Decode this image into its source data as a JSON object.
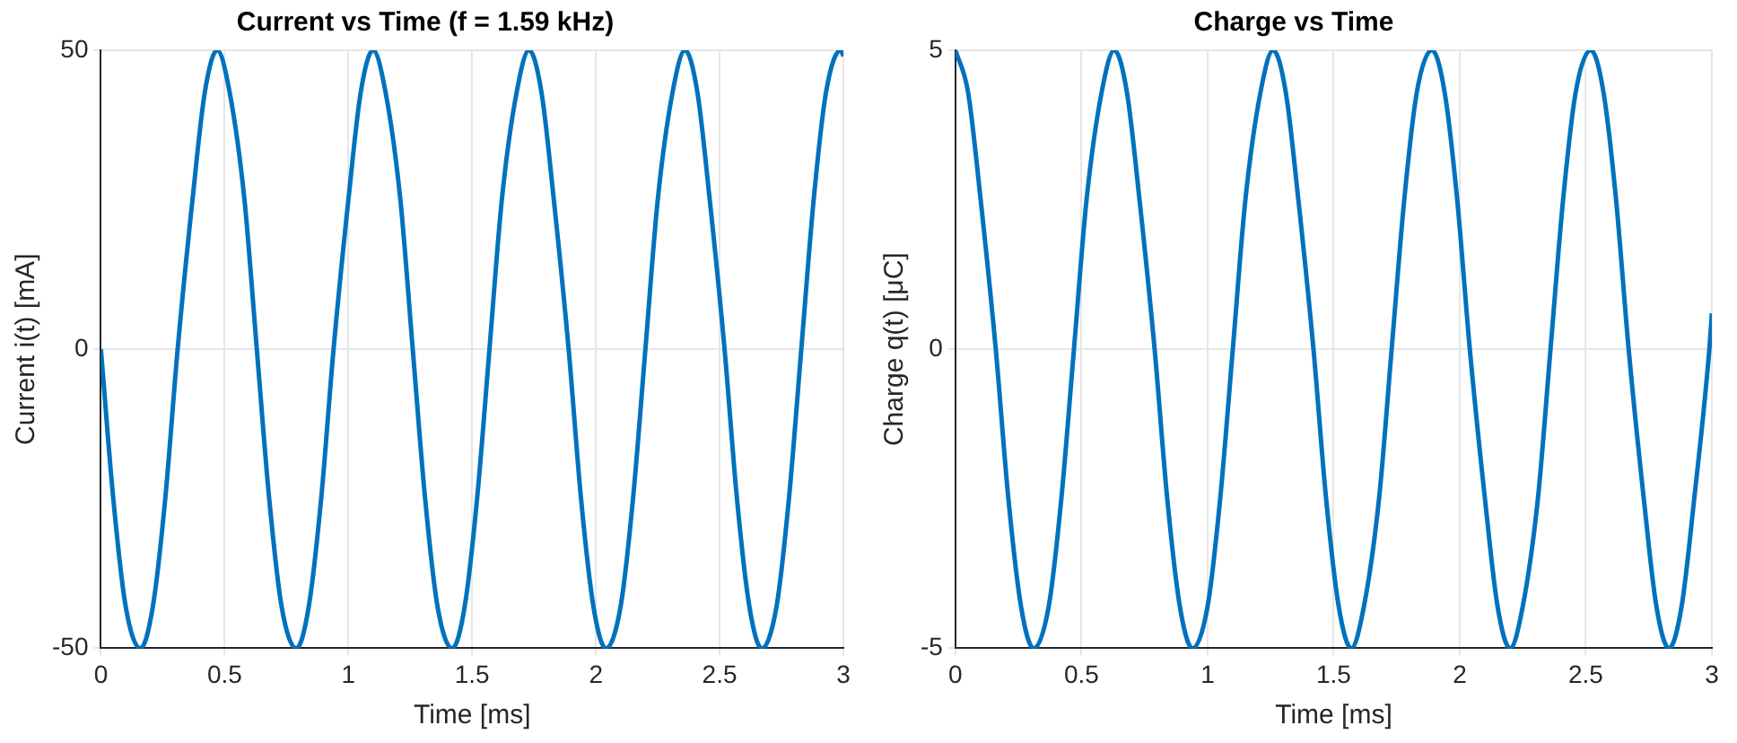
{
  "chart_data": [
    {
      "type": "line",
      "title": "Current vs Time (f = 1.59 kHz)",
      "xlabel": "Time [ms]",
      "ylabel": "Current i(t) [mA]",
      "x": [
        0,
        0.05,
        0.1,
        0.16,
        0.21,
        0.26,
        0.31,
        0.37,
        0.42,
        0.47,
        0.52,
        0.58,
        0.63,
        0.68,
        0.73,
        0.79,
        0.84,
        0.89,
        0.94,
        1.0,
        1.05,
        1.1,
        1.15,
        1.21,
        1.26,
        1.31,
        1.36,
        1.42,
        1.47,
        1.52,
        1.57,
        1.62,
        1.68,
        1.73,
        1.78,
        1.83,
        1.89,
        1.94,
        1.99,
        2.04,
        2.1,
        2.15,
        2.2,
        2.25,
        2.31,
        2.36,
        2.41,
        2.46,
        2.52,
        2.57,
        2.62,
        2.67,
        2.73,
        2.78,
        2.83,
        2.88,
        2.93,
        2.99,
        3
      ],
      "values": [
        0,
        -25,
        -43,
        -50,
        -43,
        -25,
        0,
        25,
        43,
        50,
        43,
        25,
        0,
        -25,
        -43,
        -50,
        -43,
        -25,
        0,
        25,
        43,
        50,
        43,
        25,
        0,
        -25,
        -43,
        -50,
        -43,
        -25,
        0,
        25,
        43,
        50,
        43,
        25,
        0,
        -25,
        -43,
        -50,
        -43,
        -25,
        0,
        25,
        43,
        50,
        43,
        25,
        0,
        -25,
        -43,
        -50,
        -43,
        -25,
        0,
        25,
        43,
        50,
        49
      ],
      "color": "#0072bd",
      "xlim": [
        0,
        3
      ],
      "xticks": [
        0,
        0.5,
        1,
        1.5,
        2,
        2.5,
        3
      ],
      "ylim": [
        -50,
        50
      ],
      "yticks": [
        -50,
        0,
        50
      ],
      "grid": true
    },
    {
      "type": "line",
      "title": "Charge vs Time",
      "xlabel": "Time [ms]",
      "ylabel": "Charge q(t) [μC]",
      "x": [
        0,
        0.05,
        0.1,
        0.16,
        0.21,
        0.26,
        0.31,
        0.37,
        0.42,
        0.47,
        0.52,
        0.58,
        0.63,
        0.68,
        0.73,
        0.79,
        0.84,
        0.89,
        0.94,
        1.0,
        1.05,
        1.1,
        1.15,
        1.21,
        1.26,
        1.31,
        1.36,
        1.42,
        1.47,
        1.52,
        1.57,
        1.62,
        1.68,
        1.73,
        1.78,
        1.83,
        1.89,
        1.94,
        1.99,
        2.04,
        2.1,
        2.15,
        2.2,
        2.25,
        2.31,
        2.36,
        2.41,
        2.46,
        2.52,
        2.57,
        2.62,
        2.67,
        2.73,
        2.78,
        2.83,
        2.88,
        2.93,
        2.99,
        3
      ],
      "values": [
        5,
        4.3,
        2.5,
        0,
        -2.5,
        -4.3,
        -5,
        -4.3,
        -2.5,
        0,
        2.5,
        4.3,
        5,
        4.3,
        2.5,
        0,
        -2.5,
        -4.3,
        -5,
        -4.3,
        -2.5,
        0,
        2.5,
        4.3,
        5,
        4.3,
        2.5,
        0,
        -2.5,
        -4.3,
        -5,
        -4.3,
        -2.5,
        0,
        2.5,
        4.3,
        5,
        4.3,
        2.5,
        0,
        -2.5,
        -4.3,
        -5,
        -4.3,
        -2.5,
        0,
        2.5,
        4.3,
        5,
        4.3,
        2.5,
        0,
        -2.5,
        -4.3,
        -5,
        -4.3,
        -2.5,
        0,
        0.6
      ],
      "color": "#0072bd",
      "xlim": [
        0,
        3
      ],
      "xticks": [
        0,
        0.5,
        1,
        1.5,
        2,
        2.5,
        3
      ],
      "ylim": [
        -5,
        5
      ],
      "yticks": [
        -5,
        0,
        5
      ],
      "grid": true
    }
  ]
}
